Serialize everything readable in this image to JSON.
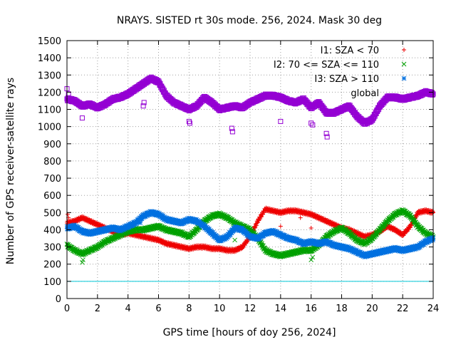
{
  "chart_data": {
    "type": "scatter",
    "title": "NRAYS. SISTED rt 30s mode. 256, 2024. Mask 30 deg",
    "xlabel": "GPS time [hours of doy 256, 2024]",
    "ylabel": "Number of GPS receiver-satellite rays",
    "xlim": [
      0,
      24
    ],
    "ylim": [
      0,
      1500
    ],
    "grid": true,
    "legend_position": "top-right",
    "x_ticks": [
      0,
      2,
      4,
      6,
      8,
      10,
      12,
      14,
      16,
      18,
      20,
      22,
      24
    ],
    "y_ticks": [
      0,
      100,
      200,
      300,
      400,
      500,
      600,
      700,
      800,
      900,
      1000,
      1100,
      1200,
      1300,
      1400,
      1500
    ],
    "reference_line": {
      "y": 100,
      "color": "#00c8d8"
    },
    "series": [
      {
        "name": "I1: SZA < 70",
        "marker": "+",
        "color": "#ee0000",
        "x": [
          0,
          0.5,
          1,
          1.5,
          2,
          2.5,
          3,
          3.5,
          4,
          4.5,
          5,
          5.5,
          6,
          6.5,
          7,
          7.5,
          8,
          8.5,
          9,
          9.5,
          10,
          10.5,
          11,
          11.5,
          12,
          12.5,
          13,
          13.5,
          14,
          14.5,
          15,
          15.5,
          16,
          16.5,
          17,
          17.5,
          18,
          18.5,
          19,
          19.5,
          20,
          20.5,
          21,
          21.5,
          22,
          22.5,
          23,
          23.5,
          24
        ],
        "values": [
          440,
          450,
          470,
          450,
          430,
          410,
          390,
          370,
          380,
          370,
          360,
          350,
          340,
          320,
          310,
          300,
          290,
          300,
          300,
          290,
          290,
          280,
          280,
          300,
          360,
          450,
          520,
          510,
          500,
          510,
          510,
          500,
          490,
          470,
          450,
          430,
          410,
          400,
          380,
          360,
          370,
          390,
          420,
          400,
          370,
          420,
          500,
          510,
          500
        ]
      },
      {
        "name": "I2: 70 <= SZA <= 110",
        "marker": "x",
        "color": "#00a000",
        "x": [
          0,
          0.5,
          1,
          1.5,
          2,
          2.5,
          3,
          3.5,
          4,
          4.5,
          5,
          5.5,
          6,
          6.5,
          7,
          7.5,
          8,
          8.5,
          9,
          9.5,
          10,
          10.5,
          11,
          11.5,
          12,
          12.5,
          13,
          13.5,
          14,
          14.5,
          15,
          15.5,
          16,
          16.5,
          17,
          17.5,
          18,
          18.5,
          19,
          19.5,
          20,
          20.5,
          21,
          21.5,
          22,
          22.5,
          23,
          23.5,
          24
        ],
        "values": [
          310,
          280,
          260,
          280,
          300,
          330,
          350,
          370,
          390,
          400,
          400,
          410,
          420,
          400,
          390,
          380,
          360,
          400,
          450,
          480,
          490,
          470,
          440,
          420,
          400,
          350,
          280,
          260,
          250,
          260,
          270,
          280,
          280,
          310,
          360,
          390,
          410,
          380,
          340,
          320,
          350,
          400,
          450,
          490,
          510,
          480,
          420,
          380,
          360
        ]
      },
      {
        "name": "I3: SZA > 110",
        "marker": "*",
        "color": "#0070e0",
        "x": [
          0,
          0.5,
          1,
          1.5,
          2,
          2.5,
          3,
          3.5,
          4,
          4.5,
          5,
          5.5,
          6,
          6.5,
          7,
          7.5,
          8,
          8.5,
          9,
          9.5,
          10,
          10.5,
          11,
          11.5,
          12,
          12.5,
          13,
          13.5,
          14,
          14.5,
          15,
          15.5,
          16,
          16.5,
          17,
          17.5,
          18,
          18.5,
          19,
          19.5,
          20,
          20.5,
          21,
          21.5,
          22,
          22.5,
          23,
          23.5,
          24
        ],
        "values": [
          410,
          420,
          390,
          380,
          390,
          400,
          410,
          400,
          420,
          440,
          480,
          500,
          490,
          460,
          450,
          440,
          460,
          450,
          420,
          380,
          340,
          360,
          410,
          400,
          360,
          350,
          380,
          390,
          370,
          350,
          340,
          320,
          330,
          320,
          330,
          310,
          300,
          290,
          270,
          250,
          260,
          270,
          280,
          290,
          280,
          290,
          300,
          330,
          350
        ]
      },
      {
        "name": "global",
        "marker": "square",
        "color": "#9400d3",
        "x": [
          0,
          0.5,
          1,
          1.5,
          2,
          2.5,
          3,
          3.5,
          4,
          4.5,
          5,
          5.5,
          6,
          6.5,
          7,
          7.5,
          8,
          8.5,
          9,
          9.5,
          10,
          10.5,
          11,
          11.5,
          12,
          12.5,
          13,
          13.5,
          14,
          14.5,
          15,
          15.5,
          16,
          16.5,
          17,
          17.5,
          18,
          18.5,
          19,
          19.5,
          20,
          20.5,
          21,
          21.5,
          22,
          22.5,
          23,
          23.5,
          24
        ],
        "values": [
          1160,
          1150,
          1120,
          1130,
          1110,
          1130,
          1160,
          1170,
          1190,
          1220,
          1250,
          1280,
          1260,
          1180,
          1140,
          1120,
          1100,
          1120,
          1170,
          1140,
          1100,
          1110,
          1120,
          1110,
          1140,
          1160,
          1180,
          1180,
          1170,
          1150,
          1140,
          1160,
          1110,
          1140,
          1080,
          1080,
          1100,
          1120,
          1060,
          1020,
          1040,
          1120,
          1170,
          1170,
          1160,
          1170,
          1180,
          1200,
          1190
        ]
      }
    ],
    "outliers": {
      "I1: SZA < 70": [
        [
          0.05,
          490
        ],
        [
          0.1,
          470
        ],
        [
          14,
          420
        ],
        [
          15.3,
          470
        ],
        [
          16,
          410
        ]
      ],
      "I2: 70 <= SZA <= 110": [
        [
          1.0,
          210
        ],
        [
          1.05,
          225
        ],
        [
          16.0,
          225
        ],
        [
          16.1,
          240
        ],
        [
          11.0,
          340
        ]
      ],
      "I3: SZA > 110": [
        [
          4.8,
          440
        ]
      ],
      "global": [
        [
          0.0,
          1220
        ],
        [
          0.1,
          1190
        ],
        [
          1.0,
          1050
        ],
        [
          5.0,
          1120
        ],
        [
          5.05,
          1140
        ],
        [
          8.0,
          1030
        ],
        [
          8.05,
          1020
        ],
        [
          10.8,
          990
        ],
        [
          10.85,
          970
        ],
        [
          14.0,
          1030
        ],
        [
          16.0,
          1020
        ],
        [
          16.1,
          1010
        ],
        [
          17.0,
          960
        ],
        [
          17.05,
          940
        ]
      ]
    }
  }
}
